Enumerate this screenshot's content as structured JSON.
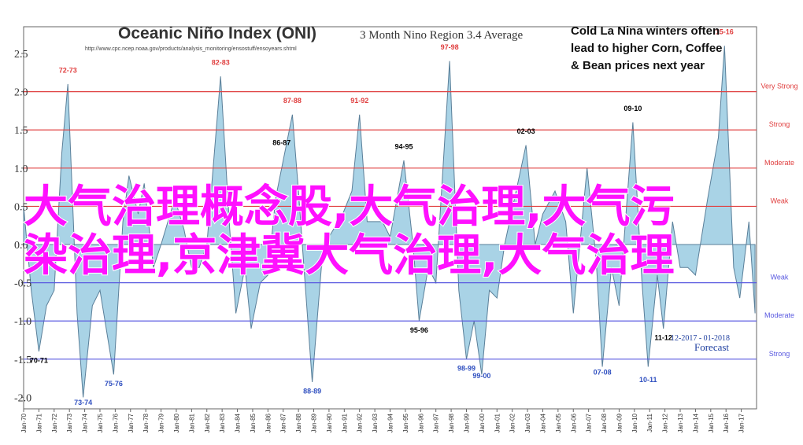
{
  "chart_data": {
    "type": "area",
    "title": "Oceanic Niño Index (ONI)",
    "subtitle": "3 Month Nino Region 3.4 Average",
    "source": "http://www.cpc.ncep.noaa.gov/products/analysis_monitoring/ensostuff/ensoyears.shtml",
    "note_lines": [
      "Cold La Nina winters often",
      "lead to higher Corn, Coffee",
      "& Bean prices next year"
    ],
    "overlay_lines": [
      "大气治理概念股,大气治理,大气污",
      "染治理,京津冀大气治理,大气治理"
    ],
    "forecast": "Forecast",
    "forecast_period": "12-2017 - 01-2018",
    "color": "#a9d3e6",
    "line_color": "#5a7f99",
    "xlim": [
      1970,
      2018
    ],
    "ylim": [
      -2.15,
      2.85
    ],
    "yticks": [
      {
        "value": 2.5,
        "label": "2.5"
      },
      {
        "value": 2.0,
        "label": "2.0"
      },
      {
        "value": 1.5,
        "label": "1.5"
      },
      {
        "value": 1.0,
        "label": "1.0"
      },
      {
        "value": 0.5,
        "label": "0.5"
      },
      {
        "value": 0.0,
        "label": "0.0"
      },
      {
        "value": -0.5,
        "label": "-0.5"
      },
      {
        "value": -1.0,
        "label": "-1.0"
      },
      {
        "value": -1.5,
        "label": "-1.5"
      },
      {
        "value": -2.0,
        "label": "-2.0"
      }
    ],
    "xticks": [
      {
        "value": 1970,
        "label": "Jan-70"
      },
      {
        "value": 1971,
        "label": "Jan-71"
      },
      {
        "value": 1972,
        "label": "Jan-72"
      },
      {
        "value": 1973,
        "label": "Jan-73"
      },
      {
        "value": 1974,
        "label": "Jan-74"
      },
      {
        "value": 1975,
        "label": "Jan-75"
      },
      {
        "value": 1976,
        "label": "Jan-76"
      },
      {
        "value": 1977,
        "label": "Jan-77"
      },
      {
        "value": 1978,
        "label": "Jan-78"
      },
      {
        "value": 1979,
        "label": "Jan-79"
      },
      {
        "value": 1980,
        "label": "Jan-80"
      },
      {
        "value": 1981,
        "label": "Jan-81"
      },
      {
        "value": 1982,
        "label": "Jan-82"
      },
      {
        "value": 1983,
        "label": "Jan-83"
      },
      {
        "value": 1984,
        "label": "Jan-84"
      },
      {
        "value": 1985,
        "label": "Jan-85"
      },
      {
        "value": 1986,
        "label": "Jan-86"
      },
      {
        "value": 1987,
        "label": "Jan-87"
      },
      {
        "value": 1988,
        "label": "Jan-88"
      },
      {
        "value": 1989,
        "label": "Jan-89"
      },
      {
        "value": 1990,
        "label": "Jan-90"
      },
      {
        "value": 1991,
        "label": "Jan-91"
      },
      {
        "value": 1992,
        "label": "Jan-92"
      },
      {
        "value": 1993,
        "label": "Jan-93"
      },
      {
        "value": 1994,
        "label": "Jan-94"
      },
      {
        "value": 1995,
        "label": "Jan-95"
      },
      {
        "value": 1996,
        "label": "Jan-96"
      },
      {
        "value": 1997,
        "label": "Jan-97"
      },
      {
        "value": 1998,
        "label": "Jan-98"
      },
      {
        "value": 1999,
        "label": "Jan-99"
      },
      {
        "value": 2000,
        "label": "Jan-00"
      },
      {
        "value": 2001,
        "label": "Jan-01"
      },
      {
        "value": 2002,
        "label": "Jan-02"
      },
      {
        "value": 2003,
        "label": "Jan-03"
      },
      {
        "value": 2004,
        "label": "Jan-04"
      },
      {
        "value": 2005,
        "label": "Jan-05"
      },
      {
        "value": 2006,
        "label": "Jan-06"
      },
      {
        "value": 2007,
        "label": "Jan-07"
      },
      {
        "value": 2008,
        "label": "Jan-08"
      },
      {
        "value": 2009,
        "label": "Jan-09"
      },
      {
        "value": 2010,
        "label": "Jan-10"
      },
      {
        "value": 2011,
        "label": "Jan-11"
      },
      {
        "value": 2012,
        "label": "Jan-12"
      },
      {
        "value": 2013,
        "label": "Jan-13"
      },
      {
        "value": 2014,
        "label": "Jan-14"
      },
      {
        "value": 2015,
        "label": "Jan-15"
      },
      {
        "value": 2016,
        "label": "Jan-16"
      },
      {
        "value": 2017,
        "label": "Jan-17"
      }
    ],
    "thresholds": [
      {
        "value": 2.0,
        "label": "Very Strong",
        "color": "#e04040"
      },
      {
        "value": 1.5,
        "label": "Strong",
        "color": "#e04040"
      },
      {
        "value": 1.0,
        "label": "Moderate",
        "color": "#e04040"
      },
      {
        "value": 0.5,
        "label": "Weak",
        "color": "#e04040"
      },
      {
        "value": -0.5,
        "label": "Weak",
        "color": "#5a5ae0"
      },
      {
        "value": -1.0,
        "label": "Moderate",
        "color": "#5a5ae0"
      },
      {
        "value": -1.5,
        "label": "Strong",
        "color": "#5a5ae0"
      }
    ],
    "x": [
      1970.0,
      1970.5,
      1971.0,
      1971.5,
      1972.0,
      1972.5,
      1972.9,
      1973.5,
      1973.9,
      1974.5,
      1975.0,
      1975.9,
      1976.5,
      1976.9,
      1977.5,
      1977.9,
      1978.5,
      1979.0,
      1979.9,
      1980.5,
      1981.0,
      1981.5,
      1982.0,
      1982.9,
      1983.5,
      1983.9,
      1984.5,
      1984.9,
      1985.5,
      1986.0,
      1986.5,
      1987.6,
      1988.0,
      1988.9,
      1989.5,
      1990.0,
      1990.9,
      1991.5,
      1992.0,
      1992.5,
      1993.5,
      1994.0,
      1994.9,
      1995.5,
      1995.9,
      1996.5,
      1997.0,
      1997.9,
      1998.5,
      1999.0,
      1999.5,
      2000.0,
      2000.5,
      2001.0,
      2001.5,
      2002.9,
      2003.5,
      2004.0,
      2004.8,
      2005.5,
      2006.0,
      2006.9,
      2007.5,
      2007.9,
      2008.5,
      2009.0,
      2009.9,
      2010.5,
      2010.9,
      2011.5,
      2011.9,
      2012.5,
      2013.0,
      2013.5,
      2014.0,
      2014.8,
      2015.5,
      2015.9,
      2016.5,
      2016.9,
      2017.5,
      2017.9
    ],
    "values": [
      0.5,
      -0.6,
      -1.4,
      -0.8,
      -0.6,
      1.2,
      2.1,
      -0.9,
      -2.0,
      -0.8,
      -0.6,
      -1.7,
      0.3,
      0.9,
      0.4,
      0.8,
      -0.3,
      0.0,
      0.6,
      0.2,
      -0.3,
      -0.3,
      0.0,
      2.2,
      0.2,
      -0.9,
      -0.3,
      -1.1,
      -0.5,
      -0.4,
      0.6,
      1.7,
      0.7,
      -1.8,
      -0.3,
      0.1,
      0.4,
      0.7,
      1.7,
      0.3,
      0.3,
      0.1,
      1.1,
      0.0,
      -1.0,
      -0.3,
      -0.5,
      2.4,
      -0.6,
      -1.5,
      -1.0,
      -1.7,
      -0.6,
      -0.7,
      0.0,
      1.3,
      0.0,
      0.4,
      0.7,
      0.3,
      -0.9,
      1.0,
      -0.2,
      -1.6,
      -0.3,
      -0.8,
      1.6,
      -0.5,
      -1.6,
      -0.4,
      -1.1,
      0.3,
      -0.3,
      -0.3,
      -0.4,
      0.6,
      1.4,
      2.6,
      -0.3,
      -0.7,
      0.3,
      -0.9
    ],
    "annotations": [
      {
        "text": "70-71",
        "x": 1971.0,
        "y": -1.55,
        "color": "#000000"
      },
      {
        "text": "72-73",
        "x": 1972.9,
        "y": 2.25,
        "color": "#e04040"
      },
      {
        "text": "73-74",
        "x": 1973.9,
        "y": -2.1,
        "color": "#3050c0"
      },
      {
        "text": "75-76",
        "x": 1975.9,
        "y": -1.85,
        "color": "#3050c0"
      },
      {
        "text": "82-83",
        "x": 1982.9,
        "y": 2.35,
        "color": "#e04040"
      },
      {
        "text": "86-87",
        "x": 1986.9,
        "y": 1.3,
        "color": "#000000"
      },
      {
        "text": "87-88",
        "x": 1987.6,
        "y": 1.85,
        "color": "#e04040"
      },
      {
        "text": "88-89",
        "x": 1988.9,
        "y": -1.95,
        "color": "#3050c0"
      },
      {
        "text": "91-92",
        "x": 1992.0,
        "y": 1.85,
        "color": "#e04040"
      },
      {
        "text": "94-95",
        "x": 1994.9,
        "y": 1.25,
        "color": "#000000"
      },
      {
        "text": "95-96",
        "x": 1995.9,
        "y": -1.15,
        "color": "#000000"
      },
      {
        "text": "97-98",
        "x": 1997.9,
        "y": 2.55,
        "color": "#e04040"
      },
      {
        "text": "98-99",
        "x": 1999.0,
        "y": -1.65,
        "color": "#3050c0"
      },
      {
        "text": "99-00",
        "x": 2000.0,
        "y": -1.75,
        "color": "#3050c0"
      },
      {
        "text": "02-03",
        "x": 2002.9,
        "y": 1.45,
        "color": "#000000"
      },
      {
        "text": "07-08",
        "x": 2007.9,
        "y": -1.7,
        "color": "#3050c0"
      },
      {
        "text": "09-10",
        "x": 2009.9,
        "y": 1.75,
        "color": "#000000"
      },
      {
        "text": "10-11",
        "x": 2010.9,
        "y": -1.8,
        "color": "#3050c0"
      },
      {
        "text": "11-12",
        "x": 2011.9,
        "y": -1.25,
        "color": "#000000"
      },
      {
        "text": "15-16",
        "x": 2015.9,
        "y": 2.75,
        "color": "#e04040"
      }
    ]
  }
}
